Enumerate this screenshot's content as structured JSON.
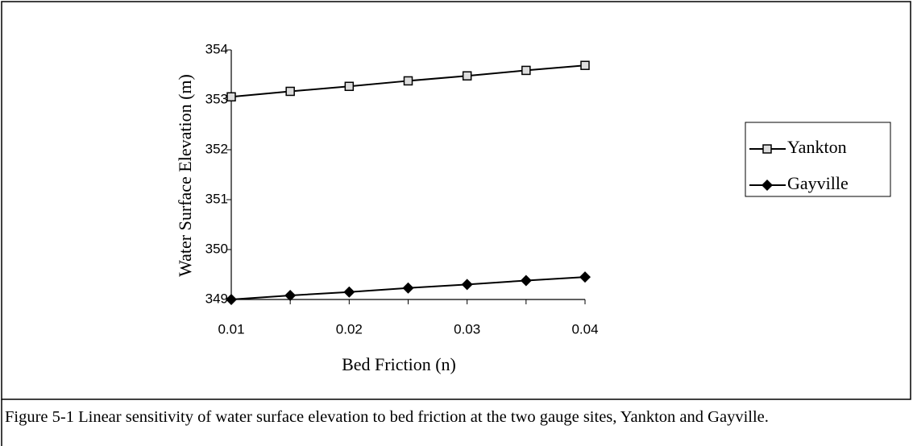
{
  "chart_data": {
    "type": "line",
    "x_label": "Bed Friction (n)",
    "y_label": "Water Surface Elevation (m)",
    "x": [
      0.01,
      0.015,
      0.02,
      0.025,
      0.03,
      0.035,
      0.04
    ],
    "series": [
      {
        "name": "Yankton",
        "color": "#000000",
        "marker": "square",
        "values": [
          353.06,
          353.17,
          353.27,
          353.38,
          353.48,
          353.59,
          353.69
        ]
      },
      {
        "name": "Gayville",
        "color": "#000000",
        "marker": "diamond",
        "values": [
          349.0,
          349.08,
          349.15,
          349.23,
          349.3,
          349.38,
          349.45
        ]
      }
    ],
    "xlim": [
      0.01,
      0.04
    ],
    "xticks": [
      {
        "value": 0.01,
        "label": "0.01"
      },
      {
        "value": 0.02,
        "label": "0.02"
      },
      {
        "value": 0.03,
        "label": "0.03"
      },
      {
        "value": 0.04,
        "label": "0.04"
      }
    ],
    "xminorticks": [
      0.015,
      0.025,
      0.035
    ],
    "ylim": [
      349,
      354
    ],
    "yticks": [
      349,
      350,
      351,
      352,
      353,
      354
    ],
    "grid": false,
    "legend": "right"
  },
  "caption": "Figure 5-1 Linear sensitivity of water surface elevation to bed friction at the two gauge sites, Yankton and Gayville."
}
